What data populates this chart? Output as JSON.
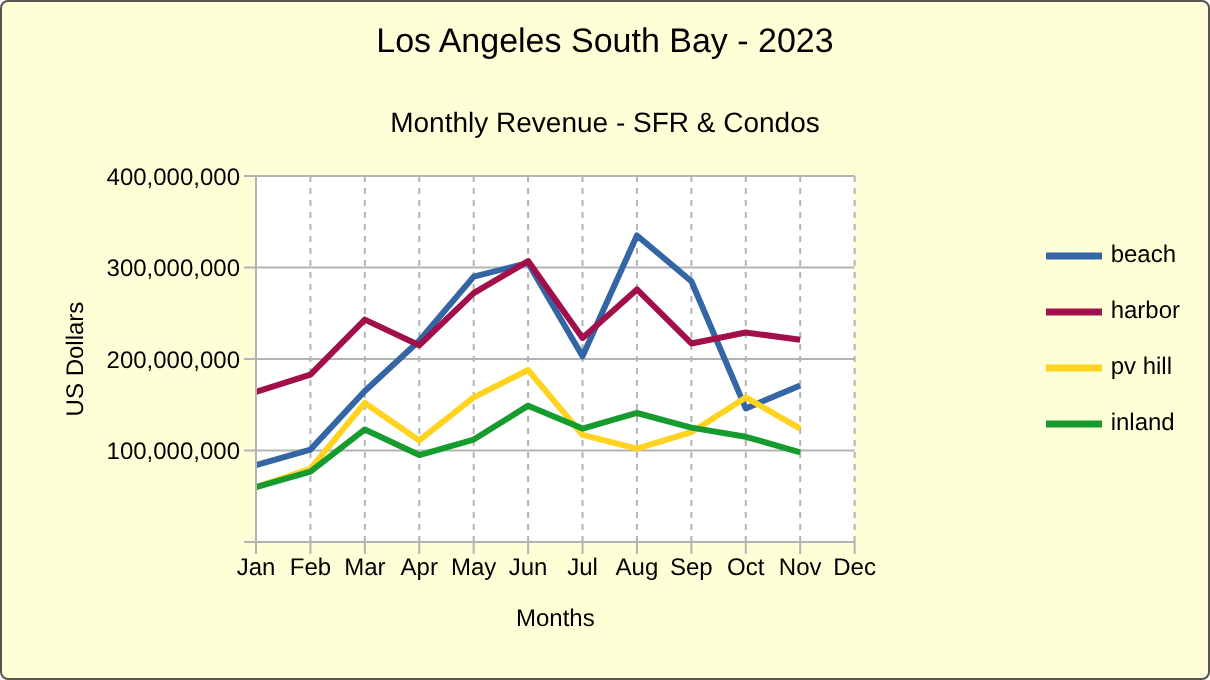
{
  "chart_data": {
    "type": "line",
    "title": "Los Angeles South Bay - 2023",
    "subtitle": "Monthly Revenue - SFR & Condos",
    "xlabel": "Months",
    "ylabel": "US Dollars",
    "categories": [
      "Jan",
      "Feb",
      "Mar",
      "Apr",
      "May",
      "Jun",
      "Jul",
      "Aug",
      "Sep",
      "Oct",
      "Nov",
      "Dec"
    ],
    "series": [
      {
        "name": "beach",
        "color": "#3465a4",
        "values": [
          84000000,
          101000000,
          165000000,
          220000000,
          290000000,
          305000000,
          203000000,
          335000000,
          285000000,
          146000000,
          171000000,
          null
        ]
      },
      {
        "name": "harbor",
        "color": "#a1104a",
        "values": [
          164000000,
          183000000,
          243000000,
          215000000,
          272000000,
          307000000,
          223000000,
          276000000,
          217000000,
          229000000,
          221000000,
          null
        ]
      },
      {
        "name": "pv hill",
        "color": "#ffd320",
        "values": [
          60000000,
          80000000,
          152000000,
          111000000,
          158000000,
          188000000,
          117000000,
          102000000,
          120000000,
          158000000,
          124000000,
          null
        ]
      },
      {
        "name": "inland",
        "color": "#169b2e",
        "values": [
          60000000,
          77000000,
          123000000,
          95000000,
          112000000,
          149000000,
          124000000,
          141000000,
          125000000,
          115000000,
          98000000,
          null
        ]
      }
    ],
    "ylim": [
      0,
      400000000
    ],
    "yticks": [
      {
        "value": 0,
        "label": null
      },
      {
        "value": 100000000,
        "label": "100,000,000"
      },
      {
        "value": 200000000,
        "label": "200,000,000"
      },
      {
        "value": 300000000,
        "label": "300,000,000"
      },
      {
        "value": 400000000,
        "label": "400,000,000"
      }
    ],
    "grid": true,
    "legend": "right",
    "marker": "none",
    "line_style": "solid"
  }
}
